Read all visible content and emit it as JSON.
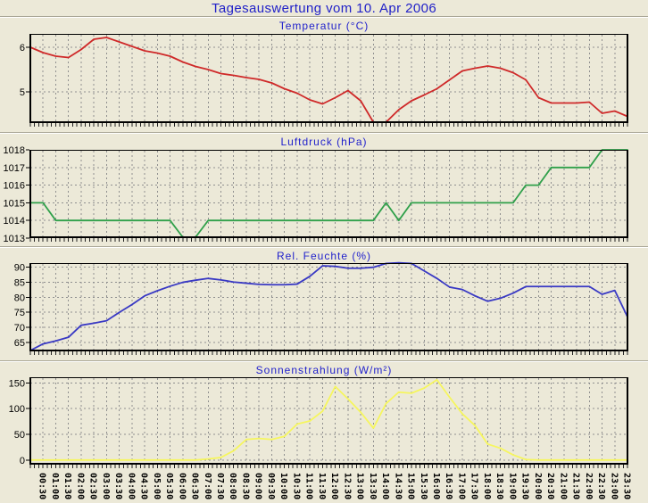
{
  "page_title": "Tagesauswertung vom 10. Apr 2006",
  "x_labels": [
    "00:30",
    "01:00",
    "01:30",
    "02:00",
    "02:30",
    "03:00",
    "03:30",
    "04:00",
    "04:30",
    "05:00",
    "05:30",
    "06:00",
    "06:30",
    "07:00",
    "07:30",
    "08:00",
    "08:30",
    "09:00",
    "09:30",
    "10:00",
    "10:30",
    "11:00",
    "11:30",
    "12:00",
    "12:30",
    "13:00",
    "13:30",
    "14:00",
    "14:30",
    "15:00",
    "15:30",
    "16:00",
    "16:30",
    "17:00",
    "17:30",
    "18:00",
    "18:30",
    "19:00",
    "19:30",
    "20:00",
    "20:30",
    "21:00",
    "21:30",
    "22:00",
    "22:30",
    "23:00",
    "23:30"
  ],
  "chart_data": [
    {
      "type": "line",
      "title": "Temperatur (°C)",
      "color": "#cf2929",
      "ylim": [
        4.3,
        6.3
      ],
      "yticks": [
        5,
        6
      ],
      "x_start": "00:00",
      "x_step_minutes": 30,
      "grid": true,
      "show_x_labels": false,
      "values": [
        6.0,
        5.88,
        5.8,
        5.77,
        5.95,
        6.18,
        6.22,
        6.12,
        6.02,
        5.92,
        5.87,
        5.8,
        5.67,
        5.57,
        5.5,
        5.41,
        5.37,
        5.32,
        5.28,
        5.2,
        5.07,
        4.97,
        4.82,
        4.73,
        4.87,
        5.03,
        4.8,
        4.32,
        4.32,
        4.6,
        4.8,
        4.93,
        5.07,
        5.27,
        5.47,
        5.53,
        5.58,
        5.53,
        5.43,
        5.27,
        4.87,
        4.75,
        4.75,
        4.75,
        4.77,
        4.52,
        4.57,
        4.45
      ]
    },
    {
      "type": "line",
      "title": "Luftdruck (hPa)",
      "color": "#2fa04a",
      "ylim": [
        1013,
        1018
      ],
      "yticks": [
        1013,
        1014,
        1015,
        1016,
        1017,
        1018
      ],
      "x_start": "00:00",
      "x_step_minutes": 30,
      "grid": true,
      "show_x_labels": false,
      "values": [
        1015,
        1015,
        1014,
        1014,
        1014,
        1014,
        1014,
        1014,
        1014,
        1014,
        1014,
        1014,
        1013.05,
        1013.05,
        1014,
        1014,
        1014,
        1014,
        1014,
        1014,
        1014,
        1014,
        1014,
        1014,
        1014,
        1014,
        1014,
        1014,
        1015,
        1014,
        1015,
        1015,
        1015,
        1015,
        1015,
        1015,
        1015,
        1015,
        1015,
        1016,
        1016,
        1017,
        1017,
        1017,
        1017,
        1018,
        1018,
        1018
      ]
    },
    {
      "type": "line",
      "title": "Rel. Feuchte (%)",
      "color": "#3939c4",
      "ylim": [
        62,
        91.4
      ],
      "yticks": [
        65,
        70,
        75,
        80,
        85,
        90
      ],
      "x_start": "00:00",
      "x_step_minutes": 30,
      "grid": true,
      "show_x_labels": false,
      "values": [
        62.3,
        64.5,
        65.5,
        66.7,
        70.7,
        71.4,
        72.2,
        75,
        77.6,
        80.5,
        82.2,
        83.7,
        85,
        85.7,
        86.3,
        85.8,
        85.1,
        84.7,
        84.3,
        84.2,
        84.2,
        84.4,
        87,
        90.5,
        90.3,
        89.7,
        89.7,
        90,
        91.3,
        91.5,
        91.3,
        88.8,
        86.3,
        83.4,
        82.6,
        80.5,
        78.7,
        79.7,
        81.4,
        83.6,
        83.6,
        83.6,
        83.6,
        83.6,
        83.6,
        81,
        82.3,
        73.5
      ]
    },
    {
      "type": "line",
      "title": "Sonnenstrahlung (W/m²)",
      "color": "#f6f65e",
      "ylim": [
        -9,
        161
      ],
      "yticks": [
        0,
        50,
        100,
        150
      ],
      "x_start": "00:00",
      "x_step_minutes": 30,
      "grid": true,
      "show_x_labels": true,
      "values": [
        0,
        0,
        0,
        0,
        0,
        0,
        0,
        0,
        0,
        0,
        0,
        0,
        0,
        0,
        2,
        5,
        18,
        40,
        42,
        40,
        46,
        70,
        76,
        95,
        143,
        119,
        93,
        62,
        110,
        132,
        130,
        140,
        156,
        122,
        90,
        67,
        31,
        23,
        10,
        1,
        0,
        0,
        0,
        0,
        0,
        0,
        0,
        0
      ]
    }
  ]
}
